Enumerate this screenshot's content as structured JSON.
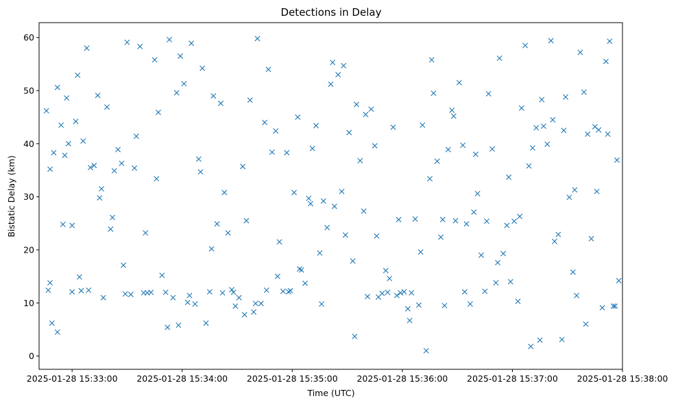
{
  "chart_data": {
    "type": "scatter",
    "title": "Detections in Delay",
    "xlabel": "Time (UTC)",
    "ylabel": "Bistatic Delay (km)",
    "x_tick_labels": [
      "2025-01-28 15:33:00",
      "2025-01-28 15:34:00",
      "2025-01-28 15:35:00",
      "2025-01-28 15:36:00",
      "2025-01-28 15:37:00",
      "2025-01-28 15:38:00"
    ],
    "y_tick_labels": [
      "0",
      "10",
      "20",
      "30",
      "40",
      "50",
      "60"
    ],
    "x_range": [
      "2025-01-28 15:32:42",
      "2025-01-28 15:38:00"
    ],
    "ylim": [
      -2.5,
      62.8
    ],
    "marker": "x",
    "color": "#1f77b4",
    "grid": false,
    "series": [
      {
        "x": [
          "2025-01-28 15:32:46",
          "2025-01-28 15:32:47",
          "2025-01-28 15:32:48",
          "2025-01-28 15:32:49",
          "2025-01-28 15:32:50",
          "2025-01-28 15:32:52",
          "2025-01-28 15:32:54",
          "2025-01-28 15:32:55",
          "2025-01-28 15:32:57",
          "2025-01-28 15:32:58",
          "2025-01-28 15:33:00",
          "2025-01-28 15:33:02",
          "2025-01-28 15:33:03",
          "2025-01-28 15:33:05",
          "2025-01-28 15:33:06",
          "2025-01-28 15:33:08",
          "2025-01-28 15:33:09",
          "2025-01-28 15:33:12",
          "2025-01-28 15:33:14",
          "2025-01-28 15:33:15",
          "2025-01-28 15:33:17",
          "2025-01-28 15:33:19",
          "2025-01-28 15:33:21",
          "2025-01-28 15:33:23",
          "2025-01-28 15:33:25",
          "2025-01-28 15:33:27",
          "2025-01-28 15:33:29",
          "2025-01-28 15:33:30",
          "2025-01-28 15:33:32",
          "2025-01-28 15:33:35",
          "2025-01-28 15:33:37",
          "2025-01-28 15:33:39",
          "2025-01-28 15:33:41",
          "2025-01-28 15:33:43",
          "2025-01-28 15:33:45",
          "2025-01-28 15:33:47",
          "2025-01-28 15:33:49",
          "2025-01-28 15:33:51",
          "2025-01-28 15:33:53",
          "2025-01-28 15:33:55",
          "2025-01-28 15:33:57",
          "2025-01-28 15:33:59",
          "2025-01-28 15:34:01",
          "2025-01-28 15:34:03",
          "2025-01-28 15:34:05",
          "2025-01-28 15:34:07",
          "2025-01-28 15:34:09",
          "2025-01-28 15:34:11",
          "2025-01-28 15:34:13",
          "2025-01-28 15:34:15",
          "2025-01-28 15:34:17",
          "2025-01-28 15:34:19",
          "2025-01-28 15:34:21",
          "2025-01-28 15:34:23",
          "2025-01-28 15:34:25",
          "2025-01-28 15:34:27",
          "2025-01-28 15:34:29",
          "2025-01-28 15:34:31",
          "2025-01-28 15:34:33",
          "2025-01-28 15:34:35",
          "2025-01-28 15:34:37",
          "2025-01-28 15:34:39",
          "2025-01-28 15:34:41",
          "2025-01-28 15:34:43",
          "2025-01-28 15:34:45",
          "2025-01-28 15:34:47",
          "2025-01-28 15:34:49",
          "2025-01-28 15:34:51",
          "2025-01-28 15:34:53",
          "2025-01-28 15:34:55",
          "2025-01-28 15:34:57",
          "2025-01-28 15:34:59",
          "2025-01-28 15:35:01",
          "2025-01-28 15:35:03",
          "2025-01-28 15:35:05",
          "2025-01-28 15:35:07",
          "2025-01-28 15:35:09",
          "2025-01-28 15:35:11",
          "2025-01-28 15:35:13",
          "2025-01-28 15:35:15",
          "2025-01-28 15:35:17",
          "2025-01-28 15:35:19",
          "2025-01-28 15:35:21",
          "2025-01-28 15:35:23",
          "2025-01-28 15:35:25",
          "2025-01-28 15:35:27",
          "2025-01-28 15:35:29",
          "2025-01-28 15:35:31",
          "2025-01-28 15:35:33",
          "2025-01-28 15:35:35",
          "2025-01-28 15:35:37",
          "2025-01-28 15:35:39",
          "2025-01-28 15:35:41",
          "2025-01-28 15:35:43",
          "2025-01-28 15:35:45",
          "2025-01-28 15:35:47",
          "2025-01-28 15:35:49",
          "2025-01-28 15:35:51",
          "2025-01-28 15:35:53",
          "2025-01-28 15:35:55",
          "2025-01-28 15:35:57",
          "2025-01-28 15:35:59",
          "2025-01-28 15:36:01",
          "2025-01-28 15:36:03",
          "2025-01-28 15:36:05",
          "2025-01-28 15:36:07",
          "2025-01-28 15:36:09",
          "2025-01-28 15:36:11",
          "2025-01-28 15:36:13",
          "2025-01-28 15:36:15",
          "2025-01-28 15:36:17",
          "2025-01-28 15:36:19",
          "2025-01-28 15:36:21",
          "2025-01-28 15:36:23",
          "2025-01-28 15:36:25",
          "2025-01-28 15:36:27",
          "2025-01-28 15:36:29",
          "2025-01-28 15:36:31",
          "2025-01-28 15:36:33",
          "2025-01-28 15:36:35",
          "2025-01-28 15:36:37",
          "2025-01-28 15:36:39",
          "2025-01-28 15:36:41",
          "2025-01-28 15:36:43",
          "2025-01-28 15:36:45",
          "2025-01-28 15:36:47",
          "2025-01-28 15:36:49",
          "2025-01-28 15:36:51",
          "2025-01-28 15:36:53",
          "2025-01-28 15:36:55",
          "2025-01-28 15:36:57",
          "2025-01-28 15:36:59",
          "2025-01-28 15:37:01",
          "2025-01-28 15:37:03",
          "2025-01-28 15:37:05",
          "2025-01-28 15:37:07",
          "2025-01-28 15:37:09",
          "2025-01-28 15:37:11",
          "2025-01-28 15:37:13",
          "2025-01-28 15:37:15",
          "2025-01-28 15:37:17",
          "2025-01-28 15:37:19",
          "2025-01-28 15:37:21",
          "2025-01-28 15:37:23",
          "2025-01-28 15:37:25",
          "2025-01-28 15:37:27",
          "2025-01-28 15:37:29",
          "2025-01-28 15:37:31",
          "2025-01-28 15:37:33",
          "2025-01-28 15:37:35",
          "2025-01-28 15:37:37",
          "2025-01-28 15:37:39",
          "2025-01-28 15:37:41",
          "2025-01-28 15:37:43",
          "2025-01-28 15:37:45",
          "2025-01-28 15:37:47",
          "2025-01-28 15:37:49",
          "2025-01-28 15:37:51",
          "2025-01-28 15:37:53",
          "2025-01-28 15:37:55",
          "2025-01-28 15:37:57",
          "2025-01-28 15:37:58"
        ],
        "y": [
          46.2,
          12.4,
          13.8,
          6.2,
          38.3,
          50.6,
          43.5,
          24.8,
          48.6,
          40.0,
          12.1,
          44.2,
          52.9,
          12.3,
          40.5,
          58.0,
          12.4,
          35.9,
          49.1,
          29.8,
          11.0,
          46.9,
          23.9,
          34.9,
          38.9,
          36.3,
          11.7,
          59.1,
          11.6,
          41.4,
          58.3,
          11.9,
          11.9,
          12.0,
          55.8,
          45.9,
          15.2,
          12.0,
          59.6,
          11.0,
          49.6,
          56.5,
          51.3,
          10.1,
          58.9,
          9.8,
          37.1,
          54.2,
          6.2,
          12.1,
          49.0,
          24.9,
          47.6,
          30.8,
          23.2,
          12.5,
          9.4,
          11.0,
          35.7,
          25.5,
          48.2,
          8.3,
          59.8,
          9.9,
          44.0,
          54.0,
          38.4,
          42.4,
          21.5,
          12.2,
          38.3,
          12.3,
          30.8,
          45.0,
          16.2,
          13.7,
          29.7,
          39.1,
          43.4,
          19.4,
          29.2,
          24.2,
          51.2,
          28.2,
          53.0,
          31.0,
          22.8,
          42.1,
          17.9,
          47.4,
          36.8,
          27.3,
          11.2,
          46.5,
          39.6,
          11.1,
          11.8,
          16.1,
          14.6,
          43.1,
          11.4,
          11.9,
          12.1,
          8.9,
          11.9,
          25.8,
          9.6,
          43.5,
          1.0,
          33.4,
          49.5,
          36.7,
          22.4,
          9.5,
          38.9,
          46.3,
          25.5,
          51.5,
          39.7,
          24.9,
          9.8,
          27.1,
          30.6,
          19.0,
          12.2,
          49.4,
          39.0,
          13.8,
          56.1,
          19.3,
          24.6,
          14.0,
          25.4,
          10.3,
          46.7,
          58.5,
          35.8,
          39.2,
          43.0,
          3.0,
          43.3,
          39.9,
          59.4,
          21.6,
          22.9,
          3.1,
          48.8,
          29.9,
          15.8,
          11.4,
          57.2,
          49.7,
          41.8,
          22.1,
          43.2,
          42.6,
          9.1,
          55.5,
          59.3,
          9.4,
          36.9,
          14.2
        ]
      },
      {
        "x": [
          "2025-01-28 15:32:48",
          "2025-01-28 15:32:52",
          "2025-01-28 15:32:56",
          "2025-01-28 15:33:00",
          "2025-01-28 15:33:04",
          "2025-01-28 15:33:10",
          "2025-01-28 15:33:16",
          "2025-01-28 15:33:22",
          "2025-01-28 15:33:28",
          "2025-01-28 15:33:34",
          "2025-01-28 15:33:40",
          "2025-01-28 15:33:46",
          "2025-01-28 15:33:52",
          "2025-01-28 15:33:58",
          "2025-01-28 15:34:04",
          "2025-01-28 15:34:10",
          "2025-01-28 15:34:16",
          "2025-01-28 15:34:22",
          "2025-01-28 15:34:28",
          "2025-01-28 15:34:34",
          "2025-01-28 15:34:40",
          "2025-01-28 15:34:46",
          "2025-01-28 15:34:52",
          "2025-01-28 15:34:58",
          "2025-01-28 15:35:04",
          "2025-01-28 15:35:10",
          "2025-01-28 15:35:16",
          "2025-01-28 15:35:22",
          "2025-01-28 15:35:28",
          "2025-01-28 15:35:34",
          "2025-01-28 15:35:40",
          "2025-01-28 15:35:46",
          "2025-01-28 15:35:52",
          "2025-01-28 15:35:58",
          "2025-01-28 15:36:04",
          "2025-01-28 15:36:10",
          "2025-01-28 15:36:16",
          "2025-01-28 15:36:22",
          "2025-01-28 15:36:28",
          "2025-01-28 15:36:34",
          "2025-01-28 15:36:40",
          "2025-01-28 15:36:46",
          "2025-01-28 15:36:52",
          "2025-01-28 15:36:58",
          "2025-01-28 15:37:04",
          "2025-01-28 15:37:10",
          "2025-01-28 15:37:16",
          "2025-01-28 15:37:22",
          "2025-01-28 15:37:28",
          "2025-01-28 15:37:34",
          "2025-01-28 15:37:40",
          "2025-01-28 15:37:46",
          "2025-01-28 15:37:52",
          "2025-01-28 15:37:56"
        ],
        "y": [
          35.2,
          4.5,
          37.8,
          24.6,
          14.9,
          35.5,
          31.5,
          26.1,
          17.1,
          35.4,
          23.2,
          33.4,
          5.4,
          5.8,
          11.4,
          34.7,
          20.2,
          11.9,
          12.0,
          7.8,
          9.9,
          12.4,
          15.0,
          12.1,
          16.4,
          28.7,
          9.8,
          55.3,
          54.7,
          3.7,
          45.5,
          22.6,
          12.0,
          25.7,
          6.7,
          19.6,
          55.8,
          25.7,
          45.2,
          12.1,
          38.0,
          25.4,
          17.6,
          33.7,
          26.3,
          1.8,
          48.3,
          44.5,
          42.5,
          31.3,
          6.0,
          31.0,
          41.8,
          9.4
        ]
      }
    ]
  }
}
